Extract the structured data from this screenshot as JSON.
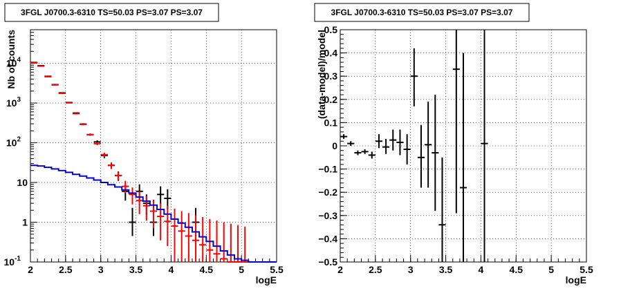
{
  "chart_data": [
    {
      "type": "line",
      "title": "3FGL J0700.3-6310 TS=50.03 PS=3.07 PS=3.07",
      "xlabel": "logE",
      "ylabel": "Nb of counts",
      "xlim": [
        2,
        5.5
      ],
      "ylim": [
        0.1,
        70000
      ],
      "yscale": "log",
      "grid": true,
      "x_ticks": [
        "2",
        "2.5",
        "3",
        "3.5",
        "4",
        "4.5",
        "5",
        "5.5"
      ],
      "y_ticks": [
        {
          "value": 0.1,
          "label": "10",
          "exp": "-1"
        },
        {
          "value": 1,
          "label": "1",
          "exp": ""
        },
        {
          "value": 10,
          "label": "10",
          "exp": ""
        },
        {
          "value": 100,
          "label": "10",
          "exp": "2"
        },
        {
          "value": 1000,
          "label": "10",
          "exp": "3"
        },
        {
          "value": 10000,
          "label": "10",
          "exp": "4"
        }
      ],
      "series": [
        {
          "color": "#000000",
          "points": [
            {
              "x": 2.05,
              "y": 10500,
              "lo": 10400,
              "hi": 10600
            },
            {
              "x": 2.15,
              "y": 8700,
              "lo": 8600,
              "hi": 8800
            },
            {
              "x": 2.25,
              "y": 4700,
              "lo": 4630,
              "hi": 4770
            },
            {
              "x": 2.35,
              "y": 2900,
              "lo": 2850,
              "hi": 2950
            },
            {
              "x": 2.45,
              "y": 1800,
              "lo": 1760,
              "hi": 1840
            },
            {
              "x": 2.55,
              "y": 1030,
              "lo": 1000,
              "hi": 1060
            },
            {
              "x": 2.65,
              "y": 560,
              "lo": 540,
              "hi": 580
            },
            {
              "x": 2.75,
              "y": 295,
              "lo": 280,
              "hi": 310
            },
            {
              "x": 2.85,
              "y": 160,
              "lo": 150,
              "hi": 170
            },
            {
              "x": 2.95,
              "y": 105,
              "lo": 95,
              "hi": 115
            },
            {
              "x": 3.05,
              "y": 48,
              "lo": 41,
              "hi": 55
            },
            {
              "x": 3.15,
              "y": 27,
              "lo": 22,
              "hi": 32
            },
            {
              "x": 3.25,
              "y": 15,
              "lo": 11,
              "hi": 19
            },
            {
              "x": 3.35,
              "y": 6,
              "lo": 3.5,
              "hi": 9
            },
            {
              "x": 3.45,
              "y": 1,
              "lo": 0.45,
              "hi": 2.3
            },
            {
              "x": 3.55,
              "y": 6,
              "lo": 3.5,
              "hi": 9
            },
            {
              "x": 3.65,
              "y": 3,
              "lo": 1.5,
              "hi": 5
            },
            {
              "x": 3.75,
              "y": 1,
              "lo": 0.45,
              "hi": 2.3
            },
            {
              "x": 3.85,
              "y": 5,
              "lo": 2.8,
              "hi": 8
            },
            {
              "x": 3.95,
              "y": 4,
              "lo": 2.1,
              "hi": 6.8
            },
            {
              "x": 4.35,
              "y": 1,
              "lo": 0.45,
              "hi": 2.3
            }
          ]
        },
        {
          "color": "#ff0000",
          "points": [
            {
              "x": 2.05,
              "y": 10300,
              "lo": 10200,
              "hi": 10400
            },
            {
              "x": 2.15,
              "y": 8500,
              "lo": 8400,
              "hi": 8600
            },
            {
              "x": 2.25,
              "y": 4600,
              "lo": 4530,
              "hi": 4670
            },
            {
              "x": 2.35,
              "y": 2850,
              "lo": 2800,
              "hi": 2900
            },
            {
              "x": 2.45,
              "y": 1750,
              "lo": 1710,
              "hi": 1790
            },
            {
              "x": 2.55,
              "y": 1010,
              "lo": 980,
              "hi": 1040
            },
            {
              "x": 2.65,
              "y": 540,
              "lo": 520,
              "hi": 560
            },
            {
              "x": 2.75,
              "y": 290,
              "lo": 275,
              "hi": 305
            },
            {
              "x": 2.85,
              "y": 160,
              "lo": 150,
              "hi": 170
            },
            {
              "x": 2.95,
              "y": 95,
              "lo": 87,
              "hi": 103
            },
            {
              "x": 3.05,
              "y": 50,
              "lo": 44,
              "hi": 56
            },
            {
              "x": 3.15,
              "y": 27,
              "lo": 22,
              "hi": 32
            },
            {
              "x": 3.25,
              "y": 15,
              "lo": 11.5,
              "hi": 18.5
            },
            {
              "x": 3.35,
              "y": 8,
              "lo": 5.5,
              "hi": 11
            },
            {
              "x": 3.45,
              "y": 5,
              "lo": 2.8,
              "hi": 7.5
            },
            {
              "x": 3.55,
              "y": 3.5,
              "lo": 1.6,
              "hi": 6
            },
            {
              "x": 3.65,
              "y": 2.6,
              "lo": 1.1,
              "hi": 4.6
            },
            {
              "x": 3.75,
              "y": 1.9,
              "lo": 0.7,
              "hi": 3.7
            },
            {
              "x": 3.85,
              "y": 1.4,
              "lo": 0.35,
              "hi": 3
            },
            {
              "x": 3.95,
              "y": 1.05,
              "lo": 0.25,
              "hi": 2.6
            },
            {
              "x": 4.05,
              "y": 0.8,
              "lo": 0.1,
              "hi": 2.2
            },
            {
              "x": 4.15,
              "y": 0.6,
              "lo": 0.1,
              "hi": 1.9
            },
            {
              "x": 4.25,
              "y": 0.45,
              "lo": 0.1,
              "hi": 1.7
            },
            {
              "x": 4.35,
              "y": 0.35,
              "lo": 0.1,
              "hi": 1.5
            },
            {
              "x": 4.45,
              "y": 0.27,
              "lo": 0.1,
              "hi": 1.35
            },
            {
              "x": 4.55,
              "y": 0.2,
              "lo": 0.1,
              "hi": 1.2
            },
            {
              "x": 4.65,
              "y": 0.16,
              "lo": 0.1,
              "hi": 1.1
            },
            {
              "x": 4.75,
              "y": 0.12,
              "lo": 0.1,
              "hi": 1.0
            },
            {
              "x": 4.85,
              "y": 0.1,
              "lo": 0.1,
              "hi": 0.92
            },
            {
              "x": 4.95,
              "y": 0.1,
              "lo": 0.1,
              "hi": 0.85
            },
            {
              "x": 5.05,
              "y": 0.1,
              "lo": 0.1,
              "hi": 0.78
            }
          ]
        },
        {
          "color": "#0000cc",
          "style": "step",
          "points": [
            {
              "x": 2.0,
              "y": 27
            },
            {
              "x": 2.1,
              "y": 26
            },
            {
              "x": 2.2,
              "y": 24
            },
            {
              "x": 2.3,
              "y": 22
            },
            {
              "x": 2.4,
              "y": 20
            },
            {
              "x": 2.5,
              "y": 18
            },
            {
              "x": 2.6,
              "y": 16
            },
            {
              "x": 2.7,
              "y": 14.5
            },
            {
              "x": 2.8,
              "y": 13
            },
            {
              "x": 2.9,
              "y": 11.5
            },
            {
              "x": 3.0,
              "y": 10
            },
            {
              "x": 3.1,
              "y": 8.8
            },
            {
              "x": 3.2,
              "y": 7.7
            },
            {
              "x": 3.3,
              "y": 6.5
            },
            {
              "x": 3.4,
              "y": 5.4
            },
            {
              "x": 3.5,
              "y": 4.3
            },
            {
              "x": 3.6,
              "y": 3.4
            },
            {
              "x": 3.7,
              "y": 2.7
            },
            {
              "x": 3.8,
              "y": 2.1
            },
            {
              "x": 3.9,
              "y": 1.6
            },
            {
              "x": 4.0,
              "y": 1.2
            },
            {
              "x": 4.1,
              "y": 0.95
            },
            {
              "x": 4.2,
              "y": 0.75
            },
            {
              "x": 4.3,
              "y": 0.57
            },
            {
              "x": 4.4,
              "y": 0.43
            },
            {
              "x": 4.5,
              "y": 0.33
            },
            {
              "x": 4.6,
              "y": 0.25
            },
            {
              "x": 4.7,
              "y": 0.19
            },
            {
              "x": 4.8,
              "y": 0.15
            },
            {
              "x": 4.9,
              "y": 0.12
            },
            {
              "x": 5.0,
              "y": 0.11
            },
            {
              "x": 5.1,
              "y": 0.1
            },
            {
              "x": 5.2,
              "y": 0.1
            },
            {
              "x": 5.3,
              "y": 0.1
            },
            {
              "x": 5.4,
              "y": 0.1
            }
          ]
        }
      ]
    },
    {
      "type": "scatter",
      "title": "3FGL J0700.3-6310 TS=50.03 PS=3.07 PS=3.07",
      "xlabel": "logE",
      "ylabel": "(data-model)/model",
      "xlim": [
        2,
        5.5
      ],
      "ylim": [
        -0.5,
        0.5
      ],
      "grid": true,
      "x_ticks": [
        "2",
        "2.5",
        "3",
        "3.5",
        "4",
        "4.5",
        "5",
        "5.5"
      ],
      "y_ticks": [
        {
          "value": -0.5,
          "label": "−0.5"
        },
        {
          "value": -0.4,
          "label": "−0.4"
        },
        {
          "value": -0.3,
          "label": "−0.3"
        },
        {
          "value": -0.2,
          "label": "−0.2"
        },
        {
          "value": -0.1,
          "label": "−0.1"
        },
        {
          "value": 0,
          "label": "0"
        },
        {
          "value": 0.1,
          "label": "0.1"
        },
        {
          "value": 0.2,
          "label": "0.2"
        },
        {
          "value": 0.3,
          "label": "0.3"
        },
        {
          "value": 0.4,
          "label": "0.4"
        },
        {
          "value": 0.5,
          "label": "0.5"
        }
      ],
      "series": [
        {
          "color": "#000000",
          "points": [
            {
              "x": 2.05,
              "y": 0.04,
              "lo": 0.03,
              "hi": 0.05
            },
            {
              "x": 2.15,
              "y": 0.01,
              "lo": 0.0,
              "hi": 0.02
            },
            {
              "x": 2.25,
              "y": -0.03,
              "lo": -0.04,
              "hi": -0.02
            },
            {
              "x": 2.35,
              "y": -0.025,
              "lo": -0.035,
              "hi": -0.015
            },
            {
              "x": 2.45,
              "y": -0.04,
              "lo": -0.055,
              "hi": -0.025
            },
            {
              "x": 2.55,
              "y": 0.02,
              "lo": -0.01,
              "hi": 0.05
            },
            {
              "x": 2.65,
              "y": -0.005,
              "lo": -0.035,
              "hi": 0.03
            },
            {
              "x": 2.75,
              "y": 0.025,
              "lo": -0.02,
              "hi": 0.07
            },
            {
              "x": 2.85,
              "y": 0.015,
              "lo": -0.04,
              "hi": 0.07
            },
            {
              "x": 2.95,
              "y": -0.015,
              "lo": -0.08,
              "hi": 0.05
            },
            {
              "x": 3.05,
              "y": 0.3,
              "lo": 0.17,
              "hi": 0.42
            },
            {
              "x": 3.15,
              "y": -0.05,
              "lo": -0.18,
              "hi": 0.09
            },
            {
              "x": 3.25,
              "y": 0.005,
              "lo": -0.18,
              "hi": 0.19
            },
            {
              "x": 3.35,
              "y": -0.03,
              "lo": -0.28,
              "hi": 0.22
            },
            {
              "x": 3.45,
              "y": -0.34,
              "lo": -0.5,
              "hi": -0.05
            },
            {
              "x": 3.65,
              "y": 0.33,
              "lo": -0.29,
              "hi": 0.5
            },
            {
              "x": 3.75,
              "y": -0.18,
              "lo": -0.5,
              "hi": 0.4
            },
            {
              "x": 4.05,
              "y": 0.01,
              "lo": -0.5,
              "hi": 0.5
            }
          ]
        }
      ]
    }
  ]
}
